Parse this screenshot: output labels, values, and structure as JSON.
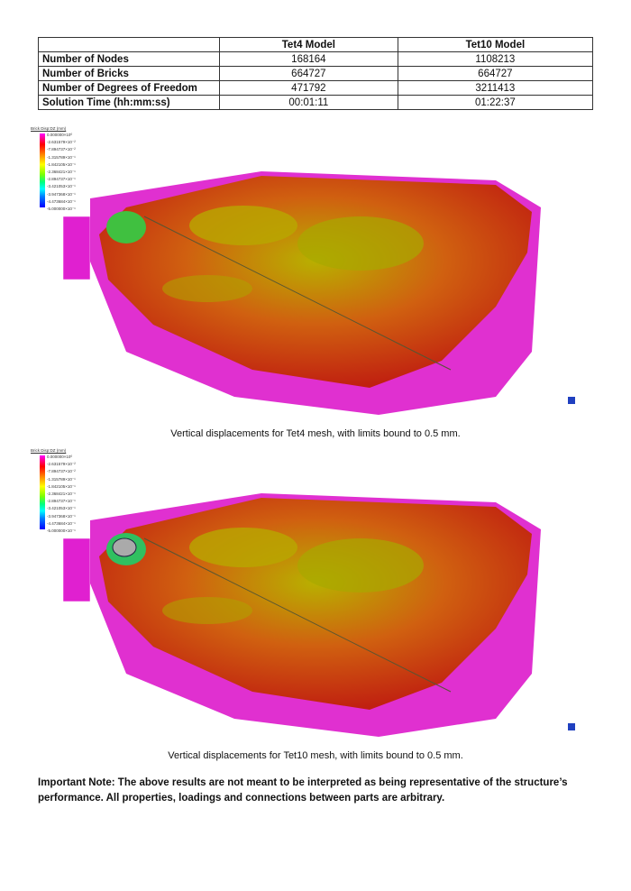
{
  "table": {
    "headers": [
      "",
      "Tet4 Model",
      "Tet10 Model"
    ],
    "rows": [
      [
        "Number of Nodes",
        "168164",
        "1108213"
      ],
      [
        "Number of Bricks",
        "664727",
        "664727"
      ],
      [
        "Number of Degrees of Freedom",
        "471792",
        "3211413"
      ],
      [
        "Solution Time (hh:mm:ss)",
        "00:01:11",
        "01:22:37"
      ]
    ]
  },
  "legend": {
    "title": "Brick Disp:DZ (mm)",
    "values": [
      "0.000000×10⁰",
      "-2.631579×10⁻²",
      "-7.894737×10⁻²",
      "-1.315789×10⁻¹",
      "-1.842105×10⁻¹",
      "-2.368421×10⁻¹",
      "-2.894737×10⁻¹",
      "-3.421053×10⁻¹",
      "-3.947368×10⁻¹",
      "-4.473684×10⁻¹",
      "-5.000000×10⁻¹"
    ]
  },
  "figures": [
    {
      "caption": "Vertical displacements for Tet4 mesh, with limits bound to 0.5 mm."
    },
    {
      "caption": "Vertical displacements for Tet10 mesh, with limits bound to 0.5 mm."
    }
  ],
  "note": "Important Note: The above results are not meant to be interpreted as being representative of the structure’s performance.  All properties, loadings and connections between parts are arbitrary."
}
